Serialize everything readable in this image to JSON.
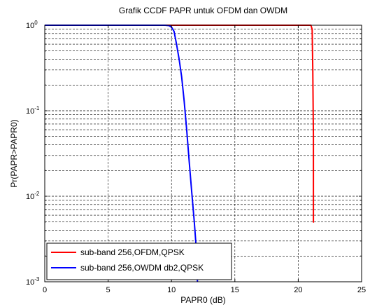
{
  "chart_data": {
    "type": "line",
    "title": "Grafik CCDF PAPR untuk OFDM dan OWDM",
    "xlabel": "PAPR0 (dB)",
    "ylabel": "Pr(PAPR>PAPR0)",
    "xlim": [
      0,
      25
    ],
    "ylim": [
      0.001,
      1
    ],
    "yscale": "log",
    "grid": true,
    "legend_position": "bottom-left",
    "x_ticks": [
      0,
      5,
      10,
      15,
      20,
      25
    ],
    "y_ticks": [
      {
        "base": "10",
        "exp": "-3",
        "value": 0.001
      },
      {
        "base": "10",
        "exp": "-2",
        "value": 0.01
      },
      {
        "base": "10",
        "exp": "-1",
        "value": 0.1
      },
      {
        "base": "10",
        "exp": "0",
        "value": 1
      }
    ],
    "series": [
      {
        "name": "sub-band 256,OFDM,QPSK",
        "color": "#ff0000",
        "x": [
          0,
          20.5,
          21.0,
          21.1,
          21.15,
          21.2,
          21.2,
          21.2,
          21.25
        ],
        "y": [
          1,
          1,
          1,
          0.9,
          0.3,
          0.05,
          0.01,
          0.005,
          0.005
        ]
      },
      {
        "name": "sub-band 256,OWDM db2,QPSK",
        "color": "#0000ff",
        "x": [
          0,
          9.5,
          9.8,
          10.0,
          10.2,
          10.4,
          10.6,
          10.8,
          11.0,
          11.2,
          11.4,
          11.6,
          11.8,
          12.0,
          12.05
        ],
        "y": [
          1,
          1,
          0.99,
          0.95,
          0.85,
          0.6,
          0.4,
          0.25,
          0.13,
          0.06,
          0.025,
          0.011,
          0.005,
          0.002,
          0.001
        ]
      }
    ]
  }
}
